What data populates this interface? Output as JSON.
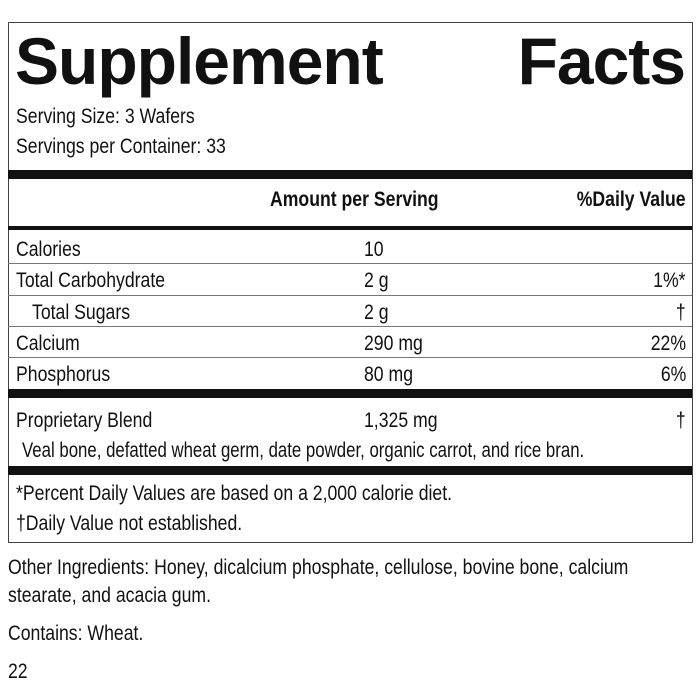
{
  "title": "Supplement Facts",
  "serving_size": "Serving Size: 3 Wafers",
  "servings_per_container": "Servings per Container: 33",
  "header": {
    "amount": "Amount per Serving",
    "daily_value": "%Daily Value"
  },
  "rows": [
    {
      "name": "Calories",
      "amount": "10"
    },
    {
      "name": "Total Carbohydrate",
      "amount": "2 g",
      "daily_value": "1%*"
    },
    {
      "name": "Total Sugars",
      "amount": "2 g",
      "daily_value": "†"
    },
    {
      "name": "Calcium",
      "amount": "290 mg",
      "daily_value": "22%"
    },
    {
      "name": "Phosphorus",
      "amount": "80 mg",
      "daily_value": "6%"
    }
  ],
  "blend": {
    "name": "Proprietary Blend",
    "amount": "1,325 mg",
    "daily_value": "†",
    "ingredients": "Veal bone, defatted wheat germ, date powder, organic carrot, and rice bran."
  },
  "footnotes": [
    "*Percent Daily Values are based on a 2,000 calorie diet.",
    "†Daily Value not established."
  ],
  "other_ingredients": "Other Ingredients: Honey, dicalcium phosphate, cellulose, bovine bone, calcium stearate, and acacia gum.",
  "contains": "Contains: Wheat.",
  "code": "22"
}
